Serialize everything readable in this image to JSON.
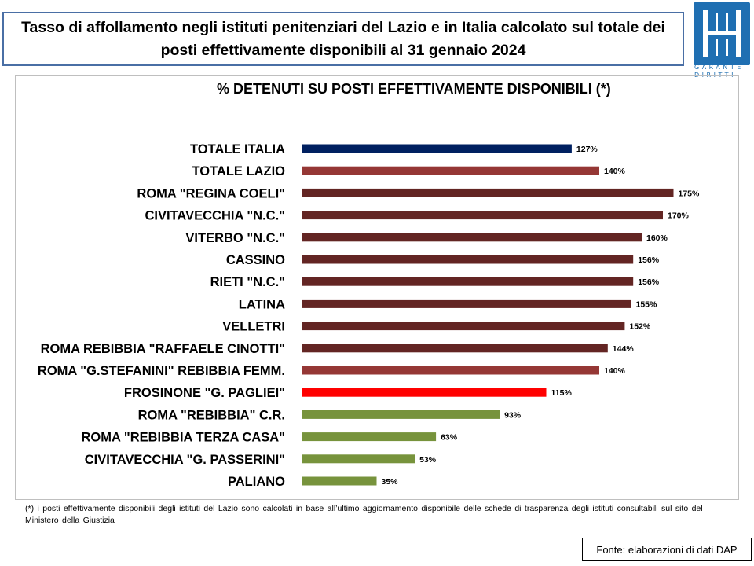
{
  "header": {
    "title": "Tasso di affollamento negli istituti penitenziari del Lazio e in Italia calcolato sul totale dei posti effettivamente disponibili al 31 gennaio 2024"
  },
  "logo": {
    "caption_line1": "GARANTE",
    "caption_line2": "DIRITTI",
    "color": "#1f6fb2"
  },
  "chart_data": {
    "type": "bar",
    "orientation": "horizontal",
    "title": "% DETENUTI SU POSTI EFFETTIVAMENTE DISPONIBILI (*)",
    "categories": [
      "TOTALE ITALIA",
      "TOTALE LAZIO",
      "ROMA \"REGINA COELI\"",
      "CIVITAVECCHIA \"N.C.\"",
      "VITERBO \"N.C.\"",
      "CASSINO",
      "RIETI \"N.C.\"",
      "LATINA",
      "VELLETRI",
      "ROMA REBIBBIA \"RAFFAELE CINOTTI\"",
      "ROMA \"G.STEFANINI\" REBIBBIA FEMM.",
      "FROSINONE \"G. PAGLIEI\"",
      "ROMA \"REBIBBIA\" C.R.",
      "ROMA \"REBIBBIA TERZA CASA\"",
      "CIVITAVECCHIA \"G. PASSERINI\"",
      "PALIANO"
    ],
    "values": [
      127,
      140,
      175,
      170,
      160,
      156,
      156,
      155,
      152,
      144,
      140,
      115,
      93,
      63,
      53,
      35
    ],
    "value_labels": [
      "127%",
      "140%",
      "175%",
      "170%",
      "160%",
      "156%",
      "156%",
      "155%",
      "152%",
      "144%",
      "140%",
      "115%",
      "93%",
      "63%",
      "53%",
      "35%"
    ],
    "colors": [
      "#002060",
      "#953735",
      "#632523",
      "#632523",
      "#632523",
      "#632523",
      "#632523",
      "#632523",
      "#632523",
      "#632523",
      "#953735",
      "#ff0000",
      "#77933c",
      "#77933c",
      "#77933c",
      "#77933c"
    ],
    "xlim": [
      0,
      175
    ],
    "grid": false,
    "legend": "none"
  },
  "footnote": "(*) i posti effettivamente disponibili  degli istituti del Lazio sono calcolati in base all’ultimo aggiornamento disponibile  delle schede di trasparenza degli istituti consultabili sul sito del Ministero della Giustizia",
  "source": "Fonte: elaborazioni di dati DAP"
}
